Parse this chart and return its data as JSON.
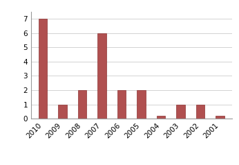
{
  "categories": [
    "2010",
    "2009",
    "2008",
    "2007",
    "2006",
    "2005",
    "2004",
    "2003",
    "2002",
    "2001"
  ],
  "values": [
    7,
    1,
    2,
    6,
    2,
    2,
    0.2,
    1,
    1,
    0.2
  ],
  "bar_color": "#B05050",
  "bar_edge_color": "#8B3030",
  "ylim": [
    0,
    7.5
  ],
  "yticks": [
    0,
    1,
    2,
    3,
    4,
    5,
    6,
    7
  ],
  "background_color": "#ffffff",
  "grid_color": "#cccccc",
  "tick_fontsize": 7.5,
  "bar_width": 0.45,
  "figure_border_color": "#aaaaaa"
}
